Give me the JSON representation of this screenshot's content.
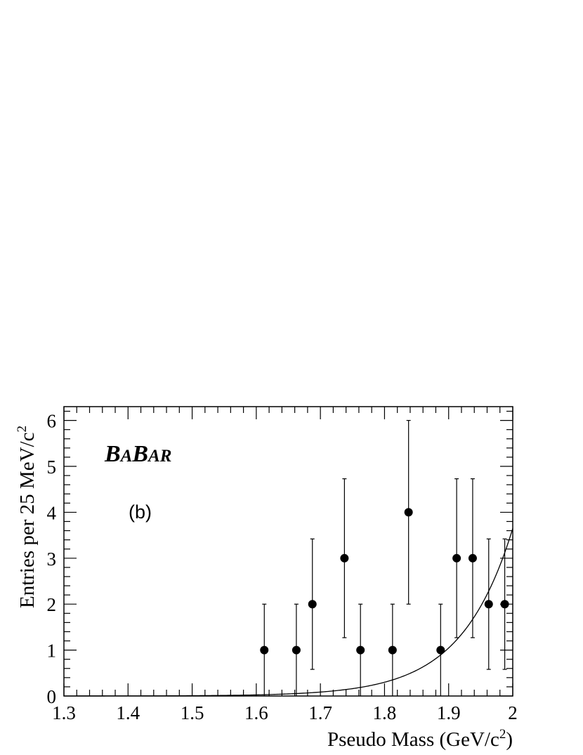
{
  "chart_data": {
    "type": "scatter",
    "xlabel": "Pseudo Mass (GeV/c",
    "xlabel_sup": "2",
    "xlabel_end": ")",
    "ylabel": "Entries per 25 MeV/c",
    "ylabel_sup": "2",
    "xlim": [
      1.3,
      2.0
    ],
    "ylim": [
      0,
      6.3
    ],
    "x_ticks": [
      "1.3",
      "1.4",
      "1.5",
      "1.6",
      "1.7",
      "1.8",
      "1.9",
      "2"
    ],
    "y_ticks": [
      "0",
      "1",
      "2",
      "3",
      "4",
      "5",
      "6"
    ],
    "logo": {
      "b1": "B",
      "a1": "A",
      "b2": "B",
      "ar": "AR"
    },
    "panel_label": "(b)",
    "series": [
      {
        "marker": "filled-circle",
        "x": [
          1.6125,
          1.6625,
          1.6875,
          1.7375,
          1.7625,
          1.8125,
          1.8375,
          1.8875,
          1.9125,
          1.9375,
          1.9625,
          1.9875
        ],
        "y": [
          1,
          1,
          2,
          3,
          1,
          1,
          4,
          1,
          3,
          3,
          2,
          2
        ],
        "err_low": [
          1,
          1,
          1.42,
          1.73,
          1,
          1,
          2.0,
          1,
          1.73,
          1.73,
          1.42,
          1.42
        ],
        "err_high": [
          1,
          1,
          1.42,
          1.73,
          1,
          1,
          2.0,
          1,
          1.73,
          1.73,
          1.42,
          1.42
        ]
      },
      {
        "marker": "line",
        "function": "exponential",
        "amplitude": 3.65,
        "x0": 2.0,
        "slope": 12.5
      }
    ],
    "grid": false
  },
  "colors": {
    "axis": "#000000",
    "markers": "#000000",
    "background": "#ffffff"
  }
}
